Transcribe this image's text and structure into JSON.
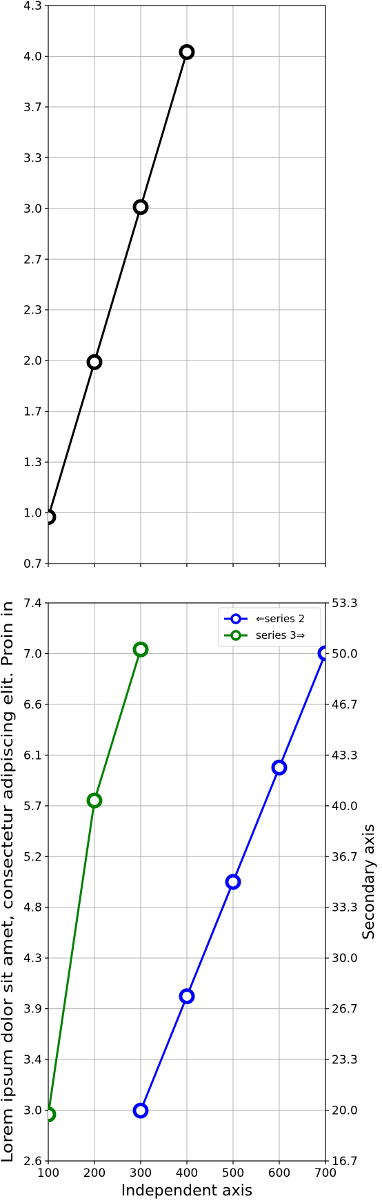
{
  "chart_data": [
    {
      "type": "line",
      "title": "",
      "xlabel": "",
      "ylabel": "",
      "xlim": [
        100,
        700
      ],
      "ylim": [
        0.7,
        4.3
      ],
      "x_ticks": [
        100,
        200,
        300,
        400,
        500,
        600,
        700
      ],
      "x_tick_labels_visible": false,
      "y_ticks": [
        "0.7",
        "1.0",
        "1.3",
        "1.7",
        "2.0",
        "2.3",
        "2.7",
        "3.0",
        "3.3",
        "3.7",
        "4.0",
        "4.3"
      ],
      "grid": true,
      "series": [
        {
          "color": "#000000",
          "marker": "open-circle",
          "x": [
            100,
            200,
            300,
            400
          ],
          "y": [
            1,
            2,
            3,
            4
          ]
        }
      ]
    },
    {
      "type": "line",
      "title": "",
      "xlabel": "Independent axis",
      "ylabel": "Lorem ipsum dolor sit amet, consectetur adipiscing elit. Proin in",
      "y2label": "Secondary axis",
      "xlim": [
        100,
        700
      ],
      "ylim": [
        2.6,
        7.4
      ],
      "y2lim": [
        16.7,
        53.3
      ],
      "x_ticks": [
        "100",
        "200",
        "300",
        "400",
        "500",
        "600",
        "700"
      ],
      "y_ticks": [
        "2.6",
        "3.0",
        "3.4",
        "3.9",
        "4.3",
        "4.8",
        "5.2",
        "5.7",
        "6.1",
        "6.6",
        "7.0",
        "7.4"
      ],
      "y2_ticks": [
        "16.7",
        "20.0",
        "23.3",
        "26.7",
        "30.0",
        "33.3",
        "36.7",
        "40.0",
        "43.3",
        "46.7",
        "50.0",
        "53.3"
      ],
      "grid": true,
      "legend": "top-right",
      "series": [
        {
          "name": "⇐series 2",
          "color": "#0000ff",
          "marker": "open-circle",
          "axis": "right",
          "x": [
            300,
            400,
            500,
            600,
            700
          ],
          "y": [
            20,
            27.5,
            35,
            42.5,
            50
          ]
        },
        {
          "name": "series 3⇒",
          "color": "#008000",
          "marker": "open-circle",
          "axis": "left",
          "x": [
            100,
            200,
            300
          ],
          "y": [
            3,
            5.7,
            7
          ]
        }
      ]
    }
  ]
}
